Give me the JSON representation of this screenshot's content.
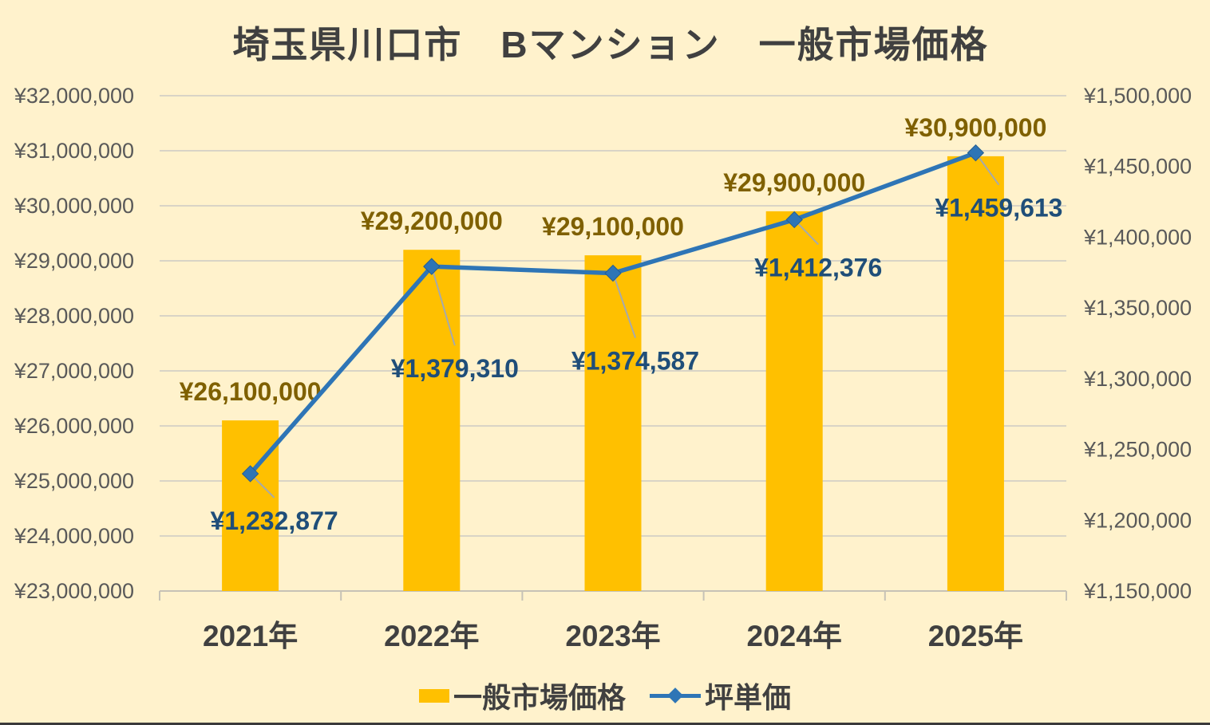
{
  "title": "埼玉県川口市　Bマンション　一般市場価格",
  "colors": {
    "background": "#FFF2CC",
    "bar": "#FFC000",
    "line": "#2E75B6",
    "marker": "#2E75B6",
    "bar_label": "#7F6000",
    "line_label": "#1F4E79",
    "axis_text": "#595959",
    "category_text": "#404040",
    "title_text": "#404040",
    "gridline": "#D9D4C6",
    "axis_line": "#C6C2B6",
    "leader": "#A6A9AD",
    "legend_text": "#404040",
    "bottom_border": "#3A3A3A"
  },
  "chart_data": {
    "type": "combo-bar-line",
    "title": "埼玉県川口市　Bマンション　一般市場価格",
    "categories": [
      "2021年",
      "2022年",
      "2023年",
      "2024年",
      "2025年"
    ],
    "series": [
      {
        "name": "一般市場価格",
        "type": "bar",
        "axis": "left",
        "values": [
          26100000,
          29200000,
          29100000,
          29900000,
          30900000
        ],
        "labels": [
          "¥26,100,000",
          "¥29,200,000",
          "¥29,100,000",
          "¥29,900,000",
          "¥30,900,000"
        ]
      },
      {
        "name": "坪単価",
        "type": "line",
        "axis": "right",
        "values": [
          1232877,
          1379310,
          1374587,
          1412376,
          1459613
        ],
        "labels": [
          "¥1,232,877",
          "¥1,379,310",
          "¥1,374,587",
          "¥1,412,376",
          "¥1,459,613"
        ],
        "leader_offsets": [
          [
            30,
            30
          ],
          [
            29,
            99
          ],
          [
            28,
            81
          ],
          [
            30,
            31
          ],
          [
            29,
            40
          ]
        ]
      }
    ],
    "left_axis": {
      "min": 23000000,
      "max": 32000000,
      "step": 1000000,
      "tick_labels": [
        "¥23,000,000",
        "¥24,000,000",
        "¥25,000,000",
        "¥26,000,000",
        "¥27,000,000",
        "¥28,000,000",
        "¥29,000,000",
        "¥30,000,000",
        "¥31,000,000",
        "¥32,000,000"
      ]
    },
    "right_axis": {
      "min": 1150000,
      "max": 1500000,
      "step": 50000,
      "tick_labels": [
        "¥1,150,000",
        "¥1,200,000",
        "¥1,250,000",
        "¥1,300,000",
        "¥1,350,000",
        "¥1,400,000",
        "¥1,450,000",
        "¥1,500,000"
      ]
    },
    "grid": true,
    "legend_position": "bottom"
  }
}
